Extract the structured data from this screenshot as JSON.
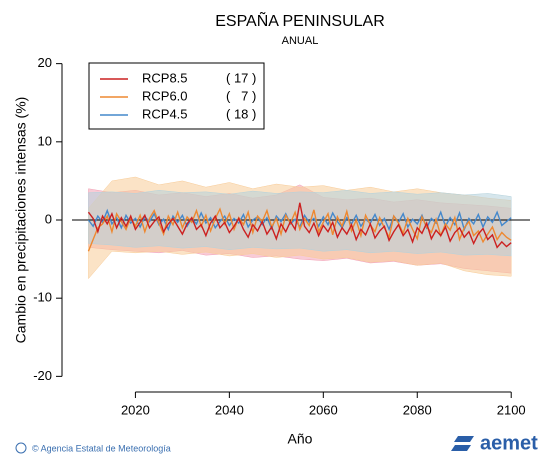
{
  "chart_data": {
    "type": "line",
    "title": "ESPAÑA PENINSULAR",
    "subtitle": "ANUAL",
    "ylabel": "Cambio en precipitaciones intensas (%)",
    "xlabel": "Año",
    "xlim": [
      2006.5,
      2104
    ],
    "ylim": [
      -22,
      22
    ],
    "xticks": [
      2020,
      2040,
      2060,
      2080,
      2100
    ],
    "yticks": [
      -20,
      -10,
      0,
      10,
      20
    ],
    "legend": "top-left",
    "x": [
      2010,
      2011,
      2012,
      2013,
      2014,
      2015,
      2016,
      2017,
      2018,
      2019,
      2020,
      2021,
      2022,
      2023,
      2024,
      2025,
      2026,
      2027,
      2028,
      2029,
      2030,
      2031,
      2032,
      2033,
      2034,
      2035,
      2036,
      2037,
      2038,
      2039,
      2040,
      2041,
      2042,
      2043,
      2044,
      2045,
      2046,
      2047,
      2048,
      2049,
      2050,
      2051,
      2052,
      2053,
      2054,
      2055,
      2056,
      2057,
      2058,
      2059,
      2060,
      2061,
      2062,
      2063,
      2064,
      2065,
      2066,
      2067,
      2068,
      2069,
      2070,
      2071,
      2072,
      2073,
      2074,
      2075,
      2076,
      2077,
      2078,
      2079,
      2080,
      2081,
      2082,
      2083,
      2084,
      2085,
      2086,
      2087,
      2088,
      2089,
      2090,
      2091,
      2092,
      2093,
      2094,
      2095,
      2096,
      2097,
      2098,
      2099,
      2100
    ],
    "band_x": [
      2010,
      2015,
      2020,
      2025,
      2030,
      2035,
      2040,
      2045,
      2050,
      2055,
      2060,
      2065,
      2070,
      2075,
      2080,
      2085,
      2090,
      2095,
      2100
    ],
    "series": [
      {
        "name": "RCP8.5",
        "count_label": "( 17 )",
        "color": "#cc2020",
        "band_color": "#f2a0b4",
        "values": [
          1.0,
          0.2,
          -1.5,
          0.5,
          -0.5,
          0.8,
          -1.0,
          0.3,
          -0.8,
          0.5,
          -1.2,
          -0.3,
          0.6,
          -1.0,
          -0.2,
          0.4,
          -1.5,
          -0.5,
          0.2,
          -0.8,
          -1.8,
          -0.5,
          0.3,
          -1.2,
          -0.6,
          -2.0,
          -0.4,
          0.5,
          -1.0,
          -0.3,
          -1.6,
          -0.8,
          0.2,
          -1.2,
          -2.2,
          -0.6,
          -1.4,
          -0.2,
          -1.8,
          -0.9,
          -2.4,
          -0.5,
          -1.5,
          -0.2,
          -1.2,
          2.2,
          -0.8,
          -1.6,
          -0.4,
          -2.0,
          -0.7,
          -1.5,
          -0.3,
          -2.2,
          -1.0,
          -1.8,
          -0.6,
          -2.5,
          -1.2,
          -1.9,
          -0.5,
          -2.3,
          -1.4,
          -0.8,
          -2.6,
          -1.5,
          -0.6,
          -2.0,
          -1.2,
          -2.8,
          -1.0,
          -1.7,
          -0.4,
          -2.4,
          -1.3,
          -2.0,
          -0.9,
          -2.7,
          -1.6,
          -1.0,
          -2.2,
          -1.5,
          -3.0,
          -1.8,
          -1.1,
          -2.5,
          -1.9,
          -3.5,
          -2.8,
          -3.4,
          -2.9
        ],
        "band_lower": [
          -3.5,
          -3.8,
          -4.0,
          -4.2,
          -3.9,
          -4.5,
          -4.3,
          -4.8,
          -4.6,
          -5.0,
          -5.2,
          -4.9,
          -5.5,
          -5.3,
          -5.8,
          -5.6,
          -6.2,
          -6.5,
          -6.8
        ],
        "band_upper": [
          4.0,
          3.5,
          3.8,
          3.2,
          3.5,
          3.0,
          3.4,
          2.8,
          3.2,
          4.5,
          2.9,
          2.6,
          2.8,
          2.3,
          2.6,
          2.2,
          2.0,
          1.8,
          1.5
        ]
      },
      {
        "name": "RCP6.0",
        "count_label": "(   7 )",
        "color": "#ee8830",
        "band_color": "#f8cc98",
        "values": [
          -4.0,
          -2.5,
          -1.0,
          -0.5,
          0.5,
          -1.5,
          0.8,
          -0.2,
          -1.2,
          0.3,
          -0.8,
          0.6,
          -1.5,
          0.2,
          1.2,
          -0.4,
          -1.8,
          0.5,
          -0.6,
          1.0,
          -1.0,
          0.4,
          -0.3,
          1.2,
          -0.8,
          0.6,
          -1.4,
          0.2,
          1.4,
          -0.5,
          0.8,
          -1.2,
          0.3,
          -0.6,
          1.0,
          -1.6,
          0.5,
          -0.2,
          1.2,
          -0.9,
          0.2,
          -1.8,
          0.6,
          -0.4,
          1.0,
          -1.2,
          0.2,
          -0.7,
          1.3,
          -1.5,
          -0.3,
          0.8,
          -1.9,
          0.4,
          -0.8,
          1.1,
          -1.4,
          0.0,
          -2.0,
          0.6,
          -0.6,
          -1.5,
          0.3,
          -1.0,
          -2.2,
          0.5,
          -0.4,
          -1.7,
          0.2,
          -1.2,
          -2.4,
          0.4,
          -0.9,
          -1.6,
          0.1,
          -2.0,
          -0.5,
          -1.3,
          0.3,
          -2.5,
          -1.0,
          -0.2,
          -2.0,
          -1.4,
          -2.8,
          -1.8,
          -0.9,
          -2.5,
          -1.6,
          -2.2,
          -2.6
        ],
        "band_lower": [
          -7.5,
          -4.0,
          -4.2,
          -4.0,
          -4.4,
          -4.1,
          -4.6,
          -4.3,
          -4.8,
          -4.5,
          -5.0,
          -4.8,
          -5.4,
          -5.2,
          -5.8,
          -5.5,
          -6.5,
          -7.0,
          -7.2
        ],
        "band_upper": [
          1.5,
          5.0,
          5.5,
          4.5,
          5.0,
          4.2,
          4.8,
          4.0,
          4.6,
          4.2,
          4.4,
          3.8,
          4.2,
          3.6,
          4.0,
          3.5,
          3.2,
          2.8,
          2.5
        ]
      },
      {
        "name": "RCP4.5",
        "count_label": "( 18 )",
        "color": "#4488cc",
        "band_color": "#b4d2dc",
        "values": [
          0.0,
          -0.8,
          0.5,
          -0.3,
          1.2,
          -0.5,
          0.3,
          -1.0,
          0.6,
          -0.4,
          0.2,
          -0.9,
          0.4,
          -0.2,
          0.8,
          -0.6,
          0.1,
          -1.2,
          0.5,
          -0.3,
          0.6,
          -0.8,
          0.2,
          -0.5,
          0.9,
          -0.4,
          0.3,
          -1.0,
          -0.2,
          0.5,
          -0.7,
          0.2,
          -0.4,
          0.7,
          -0.9,
          0.0,
          0.4,
          -0.6,
          0.3,
          -1.1,
          0.5,
          -0.2,
          0.8,
          -0.5,
          0.1,
          -0.9,
          0.6,
          -0.3,
          0.2,
          -0.8,
          0.4,
          -0.6,
          0.9,
          -0.2,
          -1.0,
          0.3,
          -0.5,
          0.6,
          -0.8,
          0.1,
          -0.4,
          0.7,
          -0.7,
          0.2,
          -1.2,
          0.5,
          -0.3,
          0.8,
          -0.9,
          0.1,
          -0.5,
          0.6,
          -1.0,
          0.2,
          -0.4,
          1.0,
          -0.8,
          0.3,
          -0.6,
          0.9,
          -1.2,
          0.2,
          -0.5,
          0.7,
          -0.9,
          0.4,
          -0.3,
          1.0,
          -0.7,
          -0.2,
          0.3
        ],
        "band_lower": [
          -3.0,
          -3.2,
          -3.5,
          -3.3,
          -3.6,
          -3.4,
          -3.8,
          -3.5,
          -3.7,
          -3.6,
          -4.0,
          -3.8,
          -4.2,
          -4.0,
          -4.3,
          -4.1,
          -4.5,
          -4.4,
          -4.6
        ],
        "band_upper": [
          3.5,
          3.6,
          3.4,
          3.8,
          3.5,
          3.6,
          3.3,
          3.7,
          3.4,
          3.6,
          3.5,
          3.8,
          3.4,
          3.6,
          3.3,
          3.5,
          3.2,
          3.4,
          3.0
        ]
      }
    ]
  },
  "footer": {
    "credit": "© Agencia Estatal de Meteorología",
    "logo": "aemet"
  }
}
